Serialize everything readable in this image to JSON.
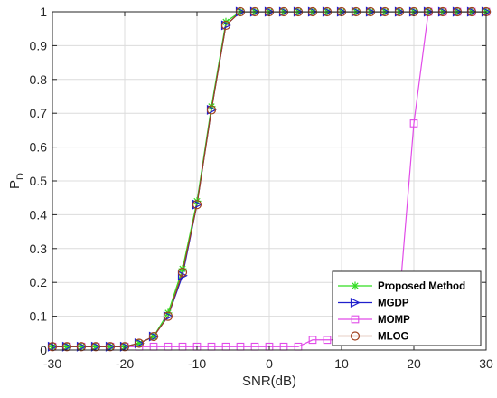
{
  "chart_data": {
    "type": "line",
    "xlabel": "SNR(dB)",
    "ylabel_main": "P",
    "ylabel_sub": "D",
    "xlim": [
      -30,
      30
    ],
    "ylim": [
      0,
      1
    ],
    "xticks": [
      -30,
      -20,
      -10,
      0,
      10,
      20,
      30
    ],
    "yticks": [
      0,
      0.1,
      0.2,
      0.3,
      0.4,
      0.5,
      0.6,
      0.7,
      0.8,
      0.9,
      1
    ],
    "grid": true,
    "legend_position": "bottom-right",
    "x": [
      -30,
      -28,
      -26,
      -24,
      -22,
      -20,
      -18,
      -16,
      -14,
      -12,
      -10,
      -8,
      -6,
      -4,
      -2,
      0,
      2,
      4,
      6,
      8,
      10,
      12,
      14,
      16,
      18,
      20,
      22,
      24,
      26,
      28,
      30
    ],
    "series": [
      {
        "name": "Proposed Method",
        "color": "#33dd22",
        "marker": "asterisk",
        "values": [
          0.01,
          0.01,
          0.01,
          0.01,
          0.01,
          0.01,
          0.02,
          0.04,
          0.11,
          0.24,
          0.44,
          0.72,
          0.97,
          1,
          1,
          1,
          1,
          1,
          1,
          1,
          1,
          1,
          1,
          1,
          1,
          1,
          1,
          1,
          1,
          1,
          1
        ]
      },
      {
        "name": "MGDP",
        "color": "#1f1fcc",
        "marker": "triangle-right",
        "values": [
          0.01,
          0.01,
          0.01,
          0.01,
          0.01,
          0.01,
          0.02,
          0.04,
          0.1,
          0.22,
          0.43,
          0.71,
          0.96,
          1,
          1,
          1,
          1,
          1,
          1,
          1,
          1,
          1,
          1,
          1,
          1,
          1,
          1,
          1,
          1,
          1,
          1
        ]
      },
      {
        "name": "MOMP",
        "color": "#e14be8",
        "marker": "square",
        "values": [
          0.01,
          0.01,
          0.01,
          0.01,
          0.01,
          0.01,
          0.01,
          0.01,
          0.01,
          0.01,
          0.01,
          0.01,
          0.01,
          0.01,
          0.01,
          0.01,
          0.01,
          0.01,
          0.03,
          0.03,
          0.03,
          0.05,
          0.07,
          0.1,
          0.15,
          0.67,
          1,
          1,
          1,
          1,
          1
        ]
      },
      {
        "name": "MLOG",
        "color": "#a0401e",
        "marker": "circle",
        "values": [
          0.01,
          0.01,
          0.01,
          0.01,
          0.01,
          0.01,
          0.02,
          0.04,
          0.1,
          0.23,
          0.43,
          0.71,
          0.96,
          1,
          1,
          1,
          1,
          1,
          1,
          1,
          1,
          1,
          1,
          1,
          1,
          1,
          1,
          1,
          1,
          1,
          1
        ]
      }
    ]
  }
}
